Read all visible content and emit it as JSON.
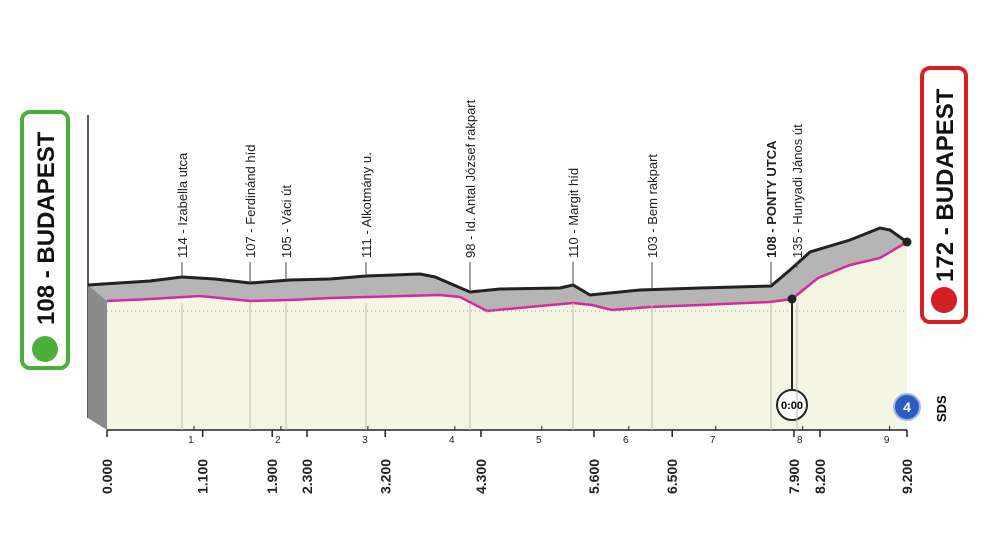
{
  "start": {
    "label": "108 - BUDAPEST"
  },
  "finish": {
    "label": "172 - BUDAPEST"
  },
  "places": [
    "114 - Izabella utca",
    "107 - Ferdinánd híd",
    "105 - Váci út",
    "111 - Alkotmány u.",
    "98 - Id. Antal József rakpart",
    "110 - Margit híd",
    "103 - Bem rakpart",
    "108 - PONTY UTCA",
    "135 - Hunyadi János út"
  ],
  "distances": [
    "0.000",
    "1.100",
    "1.900",
    "2.300",
    "3.200",
    "4.300",
    "5.600",
    "6.500",
    "7.900",
    "8.200",
    "9.200"
  ],
  "km_ticks": [
    1,
    2,
    3,
    4,
    5,
    6,
    7,
    8,
    9
  ],
  "timer": "0:00",
  "badge": "4",
  "sds": "SDS"
}
